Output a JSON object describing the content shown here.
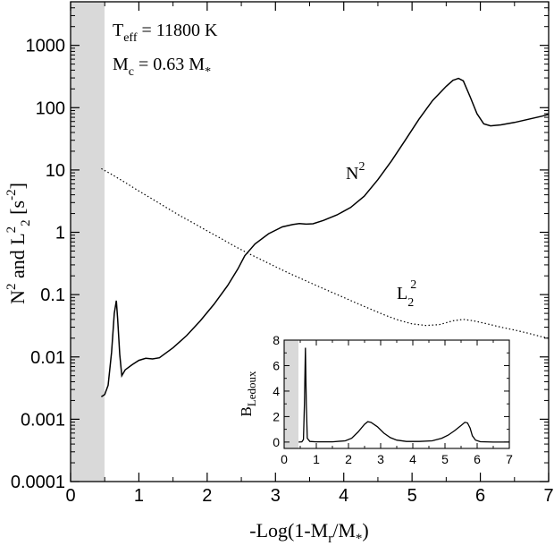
{
  "chart_data": [
    {
      "type": "line",
      "xlabel_parts": {
        "a": "-Log(1-M",
        "b": "r",
        "c": "/M",
        "d": "*",
        "e": ")"
      },
      "ylabel_parts": {
        "a": "N",
        "b": "2",
        "c": " and L",
        "d": "2",
        "e": "2",
        "f": " [s",
        "g": "-2",
        "h": "]"
      },
      "y_scale": "log",
      "xlim": [
        0,
        7
      ],
      "ylim": [
        0.0001,
        5000
      ],
      "x_ticks": [
        0,
        1,
        2,
        3,
        4,
        5,
        6,
        7
      ],
      "x_tick_labels": [
        "0",
        "1",
        "2",
        "3",
        "4",
        "5",
        "6",
        "7"
      ],
      "y_ticks": [
        0.0001,
        0.001,
        0.01,
        0.1,
        1,
        10,
        100,
        1000
      ],
      "y_tick_labels": [
        "0.0001",
        "0.001",
        "0.01",
        "0.1",
        "1",
        "10",
        "100",
        "1000"
      ],
      "shaded_x_range": [
        0,
        0.45
      ],
      "annotations": {
        "teff": {
          "a": "T",
          "b": "eff",
          "c": " = 11800 K"
        },
        "mc": {
          "a": "M",
          "b": "c",
          "c": " = 0.63 M",
          "d": "*"
        },
        "n2": {
          "a": "N",
          "b": "2"
        },
        "l2": {
          "a": "L",
          "b": "2",
          "c": "2"
        }
      },
      "series": [
        {
          "id": "N2",
          "style": "solid",
          "points": [
            [
              0.45,
              0.0023
            ],
            [
              0.5,
              0.0025
            ],
            [
              0.55,
              0.0035
            ],
            [
              0.6,
              0.012
            ],
            [
              0.64,
              0.05
            ],
            [
              0.67,
              0.08
            ],
            [
              0.69,
              0.04
            ],
            [
              0.72,
              0.011
            ],
            [
              0.75,
              0.005
            ],
            [
              0.8,
              0.0062
            ],
            [
              0.9,
              0.0075
            ],
            [
              1.0,
              0.0088
            ],
            [
              1.1,
              0.0095
            ],
            [
              1.2,
              0.0093
            ],
            [
              1.3,
              0.0097
            ],
            [
              1.5,
              0.014
            ],
            [
              1.7,
              0.022
            ],
            [
              1.9,
              0.038
            ],
            [
              2.1,
              0.07
            ],
            [
              2.3,
              0.14
            ],
            [
              2.45,
              0.26
            ],
            [
              2.55,
              0.42
            ],
            [
              2.7,
              0.65
            ],
            [
              2.9,
              0.95
            ],
            [
              3.1,
              1.22
            ],
            [
              3.25,
              1.33
            ],
            [
              3.35,
              1.38
            ],
            [
              3.45,
              1.35
            ],
            [
              3.55,
              1.37
            ],
            [
              3.7,
              1.55
            ],
            [
              3.9,
              1.9
            ],
            [
              4.1,
              2.5
            ],
            [
              4.3,
              3.8
            ],
            [
              4.5,
              7.0
            ],
            [
              4.7,
              14
            ],
            [
              4.9,
              30
            ],
            [
              5.1,
              65
            ],
            [
              5.3,
              130
            ],
            [
              5.5,
              220
            ],
            [
              5.6,
              275
            ],
            [
              5.68,
              295
            ],
            [
              5.75,
              270
            ],
            [
              5.85,
              150
            ],
            [
              5.95,
              80
            ],
            [
              6.05,
              55
            ],
            [
              6.15,
              51
            ],
            [
              6.3,
              53
            ],
            [
              6.5,
              58
            ],
            [
              6.7,
              65
            ],
            [
              6.9,
              73
            ],
            [
              7.0,
              78
            ]
          ]
        },
        {
          "id": "L2^2",
          "style": "dotted",
          "points": [
            [
              0.45,
              10.5
            ],
            [
              0.6,
              8.5
            ],
            [
              0.8,
              6.3
            ],
            [
              1.0,
              4.6
            ],
            [
              1.2,
              3.4
            ],
            [
              1.4,
              2.5
            ],
            [
              1.6,
              1.85
            ],
            [
              1.8,
              1.4
            ],
            [
              2.0,
              1.05
            ],
            [
              2.2,
              0.8
            ],
            [
              2.4,
              0.6
            ],
            [
              2.6,
              0.46
            ],
            [
              2.8,
              0.36
            ],
            [
              3.0,
              0.28
            ],
            [
              3.2,
              0.22
            ],
            [
              3.4,
              0.175
            ],
            [
              3.6,
              0.14
            ],
            [
              3.8,
              0.112
            ],
            [
              4.0,
              0.09
            ],
            [
              4.2,
              0.072
            ],
            [
              4.4,
              0.058
            ],
            [
              4.6,
              0.047
            ],
            [
              4.8,
              0.039
            ],
            [
              5.0,
              0.034
            ],
            [
              5.2,
              0.032
            ],
            [
              5.4,
              0.033
            ],
            [
              5.6,
              0.038
            ],
            [
              5.75,
              0.04
            ],
            [
              5.9,
              0.038
            ],
            [
              6.1,
              0.034
            ],
            [
              6.3,
              0.03
            ],
            [
              6.5,
              0.027
            ],
            [
              6.7,
              0.024
            ],
            [
              6.9,
              0.021
            ],
            [
              7.0,
              0.02
            ]
          ]
        }
      ]
    },
    {
      "type": "line",
      "ylabel": {
        "a": "B",
        "b": "Ledoux"
      },
      "xlim": [
        0,
        7
      ],
      "ylim": [
        -0.5,
        8
      ],
      "x_ticks": [
        0,
        1,
        2,
        3,
        4,
        5,
        6,
        7
      ],
      "x_tick_labels": [
        "0",
        "1",
        "2",
        "3",
        "4",
        "5",
        "6",
        "7"
      ],
      "y_ticks": [
        0,
        2,
        4,
        6,
        8
      ],
      "y_tick_labels": [
        "0",
        "2",
        "4",
        "6",
        "8"
      ],
      "shaded_x_range": [
        0,
        0.45
      ],
      "series": [
        {
          "id": "B_Ledoux",
          "style": "solid",
          "points": [
            [
              0.45,
              0.0
            ],
            [
              0.55,
              0.02
            ],
            [
              0.6,
              0.2
            ],
            [
              0.63,
              3.0
            ],
            [
              0.66,
              7.4
            ],
            [
              0.69,
              3.0
            ],
            [
              0.72,
              0.3
            ],
            [
              0.8,
              0.05
            ],
            [
              1.0,
              0.02
            ],
            [
              1.5,
              0.02
            ],
            [
              1.9,
              0.1
            ],
            [
              2.1,
              0.3
            ],
            [
              2.3,
              0.8
            ],
            [
              2.5,
              1.4
            ],
            [
              2.6,
              1.6
            ],
            [
              2.7,
              1.55
            ],
            [
              2.9,
              1.2
            ],
            [
              3.1,
              0.7
            ],
            [
              3.3,
              0.35
            ],
            [
              3.5,
              0.15
            ],
            [
              3.8,
              0.05
            ],
            [
              4.2,
              0.05
            ],
            [
              4.6,
              0.1
            ],
            [
              4.9,
              0.3
            ],
            [
              5.1,
              0.55
            ],
            [
              5.3,
              0.9
            ],
            [
              5.5,
              1.3
            ],
            [
              5.62,
              1.55
            ],
            [
              5.7,
              1.5
            ],
            [
              5.78,
              1.1
            ],
            [
              5.85,
              0.5
            ],
            [
              5.95,
              0.15
            ],
            [
              6.1,
              0.03
            ],
            [
              6.5,
              0.0
            ],
            [
              7.0,
              0.0
            ]
          ]
        }
      ]
    }
  ]
}
